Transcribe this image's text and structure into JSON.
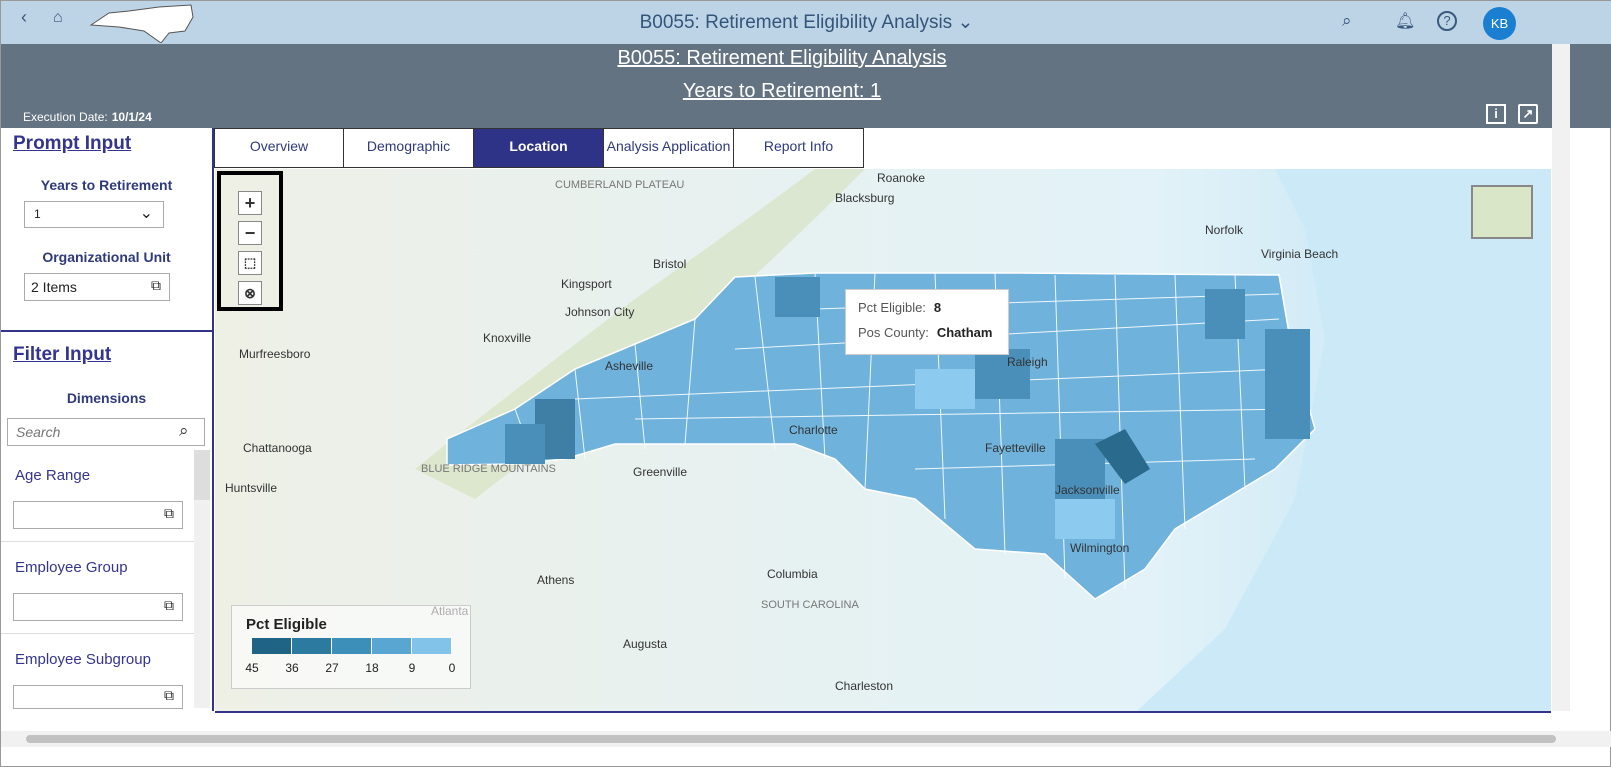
{
  "topbar": {
    "title": "B0055: Retirement Eligibility Analysis",
    "avatar": "KB",
    "icons": [
      "back-icon",
      "home-icon",
      "nc-logo",
      "chevron-down-icon",
      "search-icon",
      "bell-icon",
      "help-icon"
    ]
  },
  "header": {
    "title": "B0055: Retirement Eligibility Analysis",
    "subtitle": "Years to Retirement: 1",
    "exec_label": "Execution Date:",
    "exec_date": "10/1/24"
  },
  "prompt": {
    "heading": "Prompt Input",
    "years_label": "Years to Retirement",
    "years_value": "1",
    "org_label": "Organizational Unit",
    "org_value": "2 Items"
  },
  "filter": {
    "heading": "Filter Input",
    "dims_label": "Dimensions",
    "search_placeholder": "Search",
    "dims": [
      "Age Range",
      "Employee Group",
      "Employee Subgroup"
    ]
  },
  "tabs": [
    "Overview",
    "Demographic",
    "Location",
    "Analysis Application",
    "Report Info"
  ],
  "active_tab": "Location",
  "map": {
    "tooltip": {
      "pct_label": "Pct Eligible:",
      "pct_value": "8",
      "county_label": "Pos County:",
      "county_value": "Chatham"
    },
    "legend": {
      "title": "Pct Eligible",
      "ticks": [
        "45",
        "36",
        "27",
        "18",
        "9",
        "0"
      ],
      "colors": [
        "#1f6385",
        "#2c7aa0",
        "#3b8fb8",
        "#5aa6d2",
        "#82c3ea"
      ]
    },
    "cities": [
      "Roanoke",
      "Blacksburg",
      "Norfolk",
      "Virginia Beach",
      "Bristol",
      "Kingsport",
      "Johnson City",
      "Knoxville",
      "Murfreesboro",
      "Chattanooga",
      "Huntsville",
      "Greenville",
      "Athens",
      "Atlanta",
      "Columbia",
      "Augusta",
      "Charleston",
      "Wilmington",
      "Fayetteville",
      "Jacksonville",
      "Charlotte",
      "Asheville",
      "Raleigh",
      "SOUTH CAROLINA",
      "CUMBERLAND PLATEAU",
      "BLUE RIDGE MOUNTAINS"
    ]
  }
}
